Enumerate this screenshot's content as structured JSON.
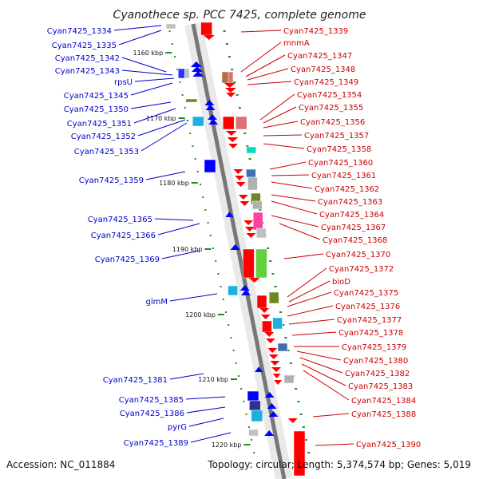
{
  "title": "Cyanothece sp. PCC 7425, complete genome",
  "footer": {
    "accession": "Accession: NC_011884",
    "summary": "Topology: circular; Length: 5,374,574 bp; Genes: 5,019"
  },
  "colors": {
    "left_label": "#0000cc",
    "right_label": "#cc0000",
    "tick": "#228b22"
  },
  "kbp_ticks": [
    "1160 kbp",
    "1170 kbp",
    "1180 kbp",
    "1190 kbp",
    "1200 kbp",
    "1210 kbp",
    "1220 kbp"
  ],
  "left_genes": [
    "Cyan7425_1334",
    "Cyan7425_1335",
    "Cyan7425_1342",
    "Cyan7425_1343",
    "rpsU",
    "Cyan7425_1345",
    "Cyan7425_1350",
    "Cyan7425_1351",
    "Cyan7425_1352",
    "Cyan7425_1353",
    "Cyan7425_1359",
    "Cyan7425_1365",
    "Cyan7425_1366",
    "Cyan7425_1369",
    "glmM",
    "Cyan7425_1381",
    "Cyan7425_1385",
    "Cyan7425_1386",
    "pyrG",
    "Cyan7425_1389"
  ],
  "right_genes": [
    "Cyan7425_1339",
    "mnmA",
    "Cyan7425_1347",
    "Cyan7425_1348",
    "Cyan7425_1349",
    "Cyan7425_1354",
    "Cyan7425_1355",
    "Cyan7425_1356",
    "Cyan7425_1357",
    "Cyan7425_1358",
    "Cyan7425_1360",
    "Cyan7425_1361",
    "Cyan7425_1362",
    "Cyan7425_1363",
    "Cyan7425_1364",
    "Cyan7425_1367",
    "Cyan7425_1368",
    "Cyan7425_1370",
    "Cyan7425_1372",
    "bioD",
    "Cyan7425_1375",
    "Cyan7425_1376",
    "Cyan7425_1377",
    "Cyan7425_1378",
    "Cyan7425_1379",
    "Cyan7425_1380",
    "Cyan7425_1382",
    "Cyan7425_1383",
    "Cyan7425_1384",
    "Cyan7425_1388",
    "Cyan7425_1390"
  ]
}
